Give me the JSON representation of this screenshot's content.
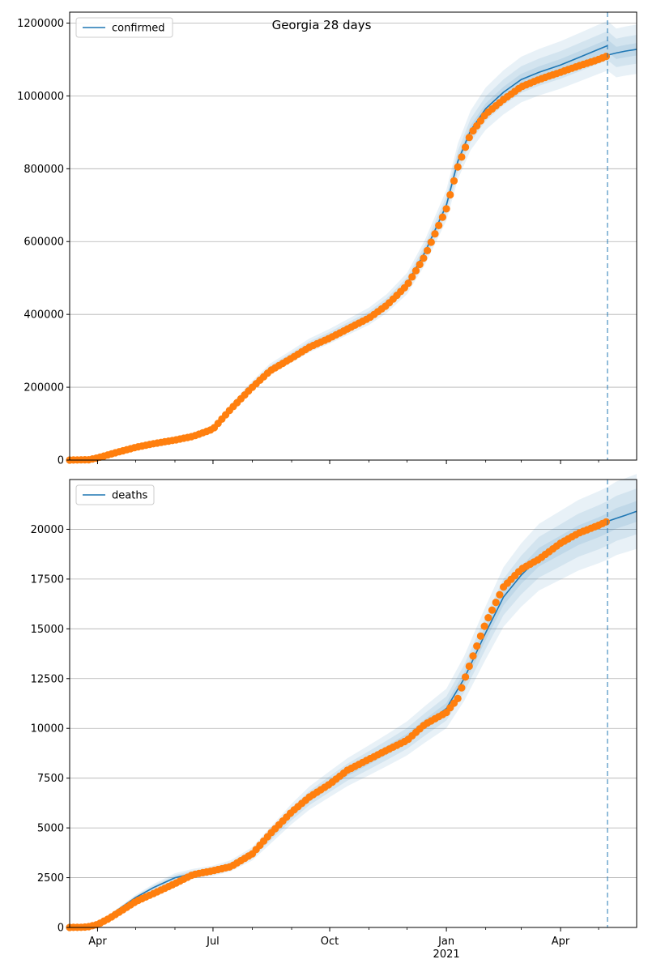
{
  "figure": {
    "title": "Georgia 28 days"
  },
  "chart_data": [
    {
      "type": "line",
      "name": "top-panel",
      "title": "Georgia 28 days",
      "xlabel": "",
      "ylabel": "",
      "x_range": [
        "2020-03-10",
        "2021-05-31"
      ],
      "ylim": [
        0,
        1230000
      ],
      "y_ticks": [
        0,
        200000,
        400000,
        600000,
        800000,
        1000000,
        1200000
      ],
      "y_tick_labels": [
        "0",
        "200000",
        "400000",
        "600000",
        "800000",
        "1000000",
        "1200000"
      ],
      "x_ticks": [
        "2020-04-01",
        "2020-07-01",
        "2020-10-01",
        "2021-01-01",
        "2021-04-01"
      ],
      "x_tick_labels": [
        "",
        "",
        "",
        "",
        ""
      ],
      "grid": "horizontal",
      "legend": {
        "position": "top-left",
        "entries": [
          "confirmed"
        ]
      },
      "forecast_start": "2021-05-08",
      "series": [
        {
          "name": "confirmed",
          "kind": "model-line",
          "color": "#1f77b4",
          "x": [
            "2020-03-10",
            "2020-04-01",
            "2020-05-01",
            "2020-06-01",
            "2020-07-01",
            "2020-07-15",
            "2020-08-01",
            "2020-08-15",
            "2020-09-01",
            "2020-09-15",
            "2020-10-01",
            "2020-10-15",
            "2020-11-01",
            "2020-11-15",
            "2020-12-01",
            "2020-12-15",
            "2021-01-01",
            "2021-01-10",
            "2021-01-20",
            "2021-02-01",
            "2021-02-15",
            "2021-03-01",
            "2021-03-15",
            "2021-04-01",
            "2021-04-15",
            "2021-05-01",
            "2021-05-08"
          ],
          "y": [
            0,
            6000,
            35000,
            55000,
            85000,
            145000,
            205000,
            250000,
            285000,
            315000,
            340000,
            365000,
            395000,
            430000,
            485000,
            570000,
            700000,
            820000,
            905000,
            965000,
            1010000,
            1045000,
            1065000,
            1085000,
            1105000,
            1128000,
            1138000
          ]
        },
        {
          "name": "confirmed-forecast",
          "kind": "forecast-line",
          "color": "#1f77b4",
          "x": [
            "2021-05-08",
            "2021-05-15",
            "2021-05-22",
            "2021-05-31"
          ],
          "y": [
            1112000,
            1118000,
            1123000,
            1128000
          ]
        },
        {
          "name": "confirmed-observed",
          "kind": "observed-points",
          "color": "#ff7f0e",
          "x": [
            "2020-03-10",
            "2020-03-25",
            "2020-04-01",
            "2020-04-15",
            "2020-05-01",
            "2020-05-15",
            "2020-06-01",
            "2020-06-15",
            "2020-07-01",
            "2020-07-15",
            "2020-08-01",
            "2020-08-15",
            "2020-09-01",
            "2020-09-15",
            "2020-10-01",
            "2020-10-15",
            "2020-11-01",
            "2020-11-15",
            "2020-12-01",
            "2020-12-15",
            "2021-01-01",
            "2021-01-10",
            "2021-01-20",
            "2021-02-01",
            "2021-02-15",
            "2021-03-01",
            "2021-03-15",
            "2021-04-01",
            "2021-04-15",
            "2021-05-01",
            "2021-05-08"
          ],
          "y": [
            0,
            1000,
            6000,
            20000,
            35000,
            45000,
            55000,
            65000,
            85000,
            140000,
            200000,
            245000,
            280000,
            310000,
            335000,
            360000,
            390000,
            425000,
            480000,
            560000,
            690000,
            805000,
            895000,
            950000,
            990000,
            1025000,
            1045000,
            1065000,
            1082000,
            1100000,
            1110000
          ]
        }
      ],
      "band_widths": [
        0.06,
        0.035,
        0.015
      ]
    },
    {
      "type": "line",
      "name": "bottom-panel",
      "xlabel": "",
      "ylabel": "",
      "x_range": [
        "2020-03-10",
        "2021-05-31"
      ],
      "ylim": [
        0,
        22500
      ],
      "y_ticks": [
        0,
        2500,
        5000,
        7500,
        10000,
        12500,
        15000,
        17500,
        20000
      ],
      "y_tick_labels": [
        "0",
        "2500",
        "5000",
        "7500",
        "10000",
        "12500",
        "15000",
        "17500",
        "20000"
      ],
      "x_ticks": [
        "2020-04-01",
        "2020-07-01",
        "2020-10-01",
        "2021-01-01",
        "2021-04-01"
      ],
      "x_tick_labels": [
        "Apr",
        "Jul",
        "Oct",
        "Jan",
        "Apr"
      ],
      "x_tick_sublabels": [
        "",
        "",
        "",
        "2021",
        ""
      ],
      "grid": "horizontal",
      "legend": {
        "position": "top-left",
        "entries": [
          "deaths"
        ]
      },
      "forecast_start": "2021-05-08",
      "series": [
        {
          "name": "deaths",
          "kind": "model-line",
          "color": "#1f77b4",
          "x": [
            "2020-03-10",
            "2020-03-25",
            "2020-04-01",
            "2020-04-15",
            "2020-05-01",
            "2020-05-15",
            "2020-06-01",
            "2020-06-15",
            "2020-07-01",
            "2020-07-15",
            "2020-08-01",
            "2020-08-15",
            "2020-09-01",
            "2020-09-15",
            "2020-10-01",
            "2020-10-15",
            "2020-11-01",
            "2020-11-15",
            "2020-12-01",
            "2020-12-15",
            "2021-01-01",
            "2021-01-15",
            "2021-02-01",
            "2021-02-15",
            "2021-03-01",
            "2021-03-15",
            "2021-04-01",
            "2021-04-15",
            "2021-05-01",
            "2021-05-08"
          ],
          "y": [
            0,
            50,
            200,
            800,
            1500,
            2000,
            2500,
            2700,
            2850,
            3100,
            3700,
            4600,
            5700,
            6500,
            7200,
            7800,
            8400,
            8900,
            9500,
            10200,
            11000,
            12500,
            14800,
            16600,
            17700,
            18600,
            19200,
            19700,
            20100,
            20300
          ]
        },
        {
          "name": "deaths-forecast",
          "kind": "forecast-line",
          "color": "#1f77b4",
          "x": [
            "2021-05-08",
            "2021-05-15",
            "2021-05-22",
            "2021-05-31"
          ],
          "y": [
            20400,
            20550,
            20700,
            20900
          ]
        },
        {
          "name": "deaths-observed",
          "kind": "observed-points",
          "color": "#ff7f0e",
          "x": [
            "2020-03-10",
            "2020-03-20",
            "2020-03-25",
            "2020-04-01",
            "2020-04-10",
            "2020-04-20",
            "2020-05-01",
            "2020-05-15",
            "2020-06-01",
            "2020-06-15",
            "2020-07-01",
            "2020-07-15",
            "2020-08-01",
            "2020-08-15",
            "2020-09-01",
            "2020-09-15",
            "2020-10-01",
            "2020-10-15",
            "2020-11-01",
            "2020-11-15",
            "2020-12-01",
            "2020-12-15",
            "2021-01-01",
            "2021-01-10",
            "2021-01-20",
            "2021-02-01",
            "2021-02-15",
            "2021-03-01",
            "2021-03-15",
            "2021-04-01",
            "2021-04-15",
            "2021-05-01",
            "2021-05-08"
          ],
          "y": [
            0,
            10,
            40,
            150,
            450,
            850,
            1300,
            1700,
            2200,
            2650,
            2850,
            3050,
            3700,
            4700,
            5800,
            6550,
            7200,
            7900,
            8450,
            8900,
            9400,
            10200,
            10800,
            11500,
            13300,
            15300,
            17100,
            18000,
            18500,
            19300,
            19800,
            20200,
            20400
          ]
        }
      ],
      "band_widths": [
        0.09,
        0.055,
        0.025
      ]
    }
  ]
}
